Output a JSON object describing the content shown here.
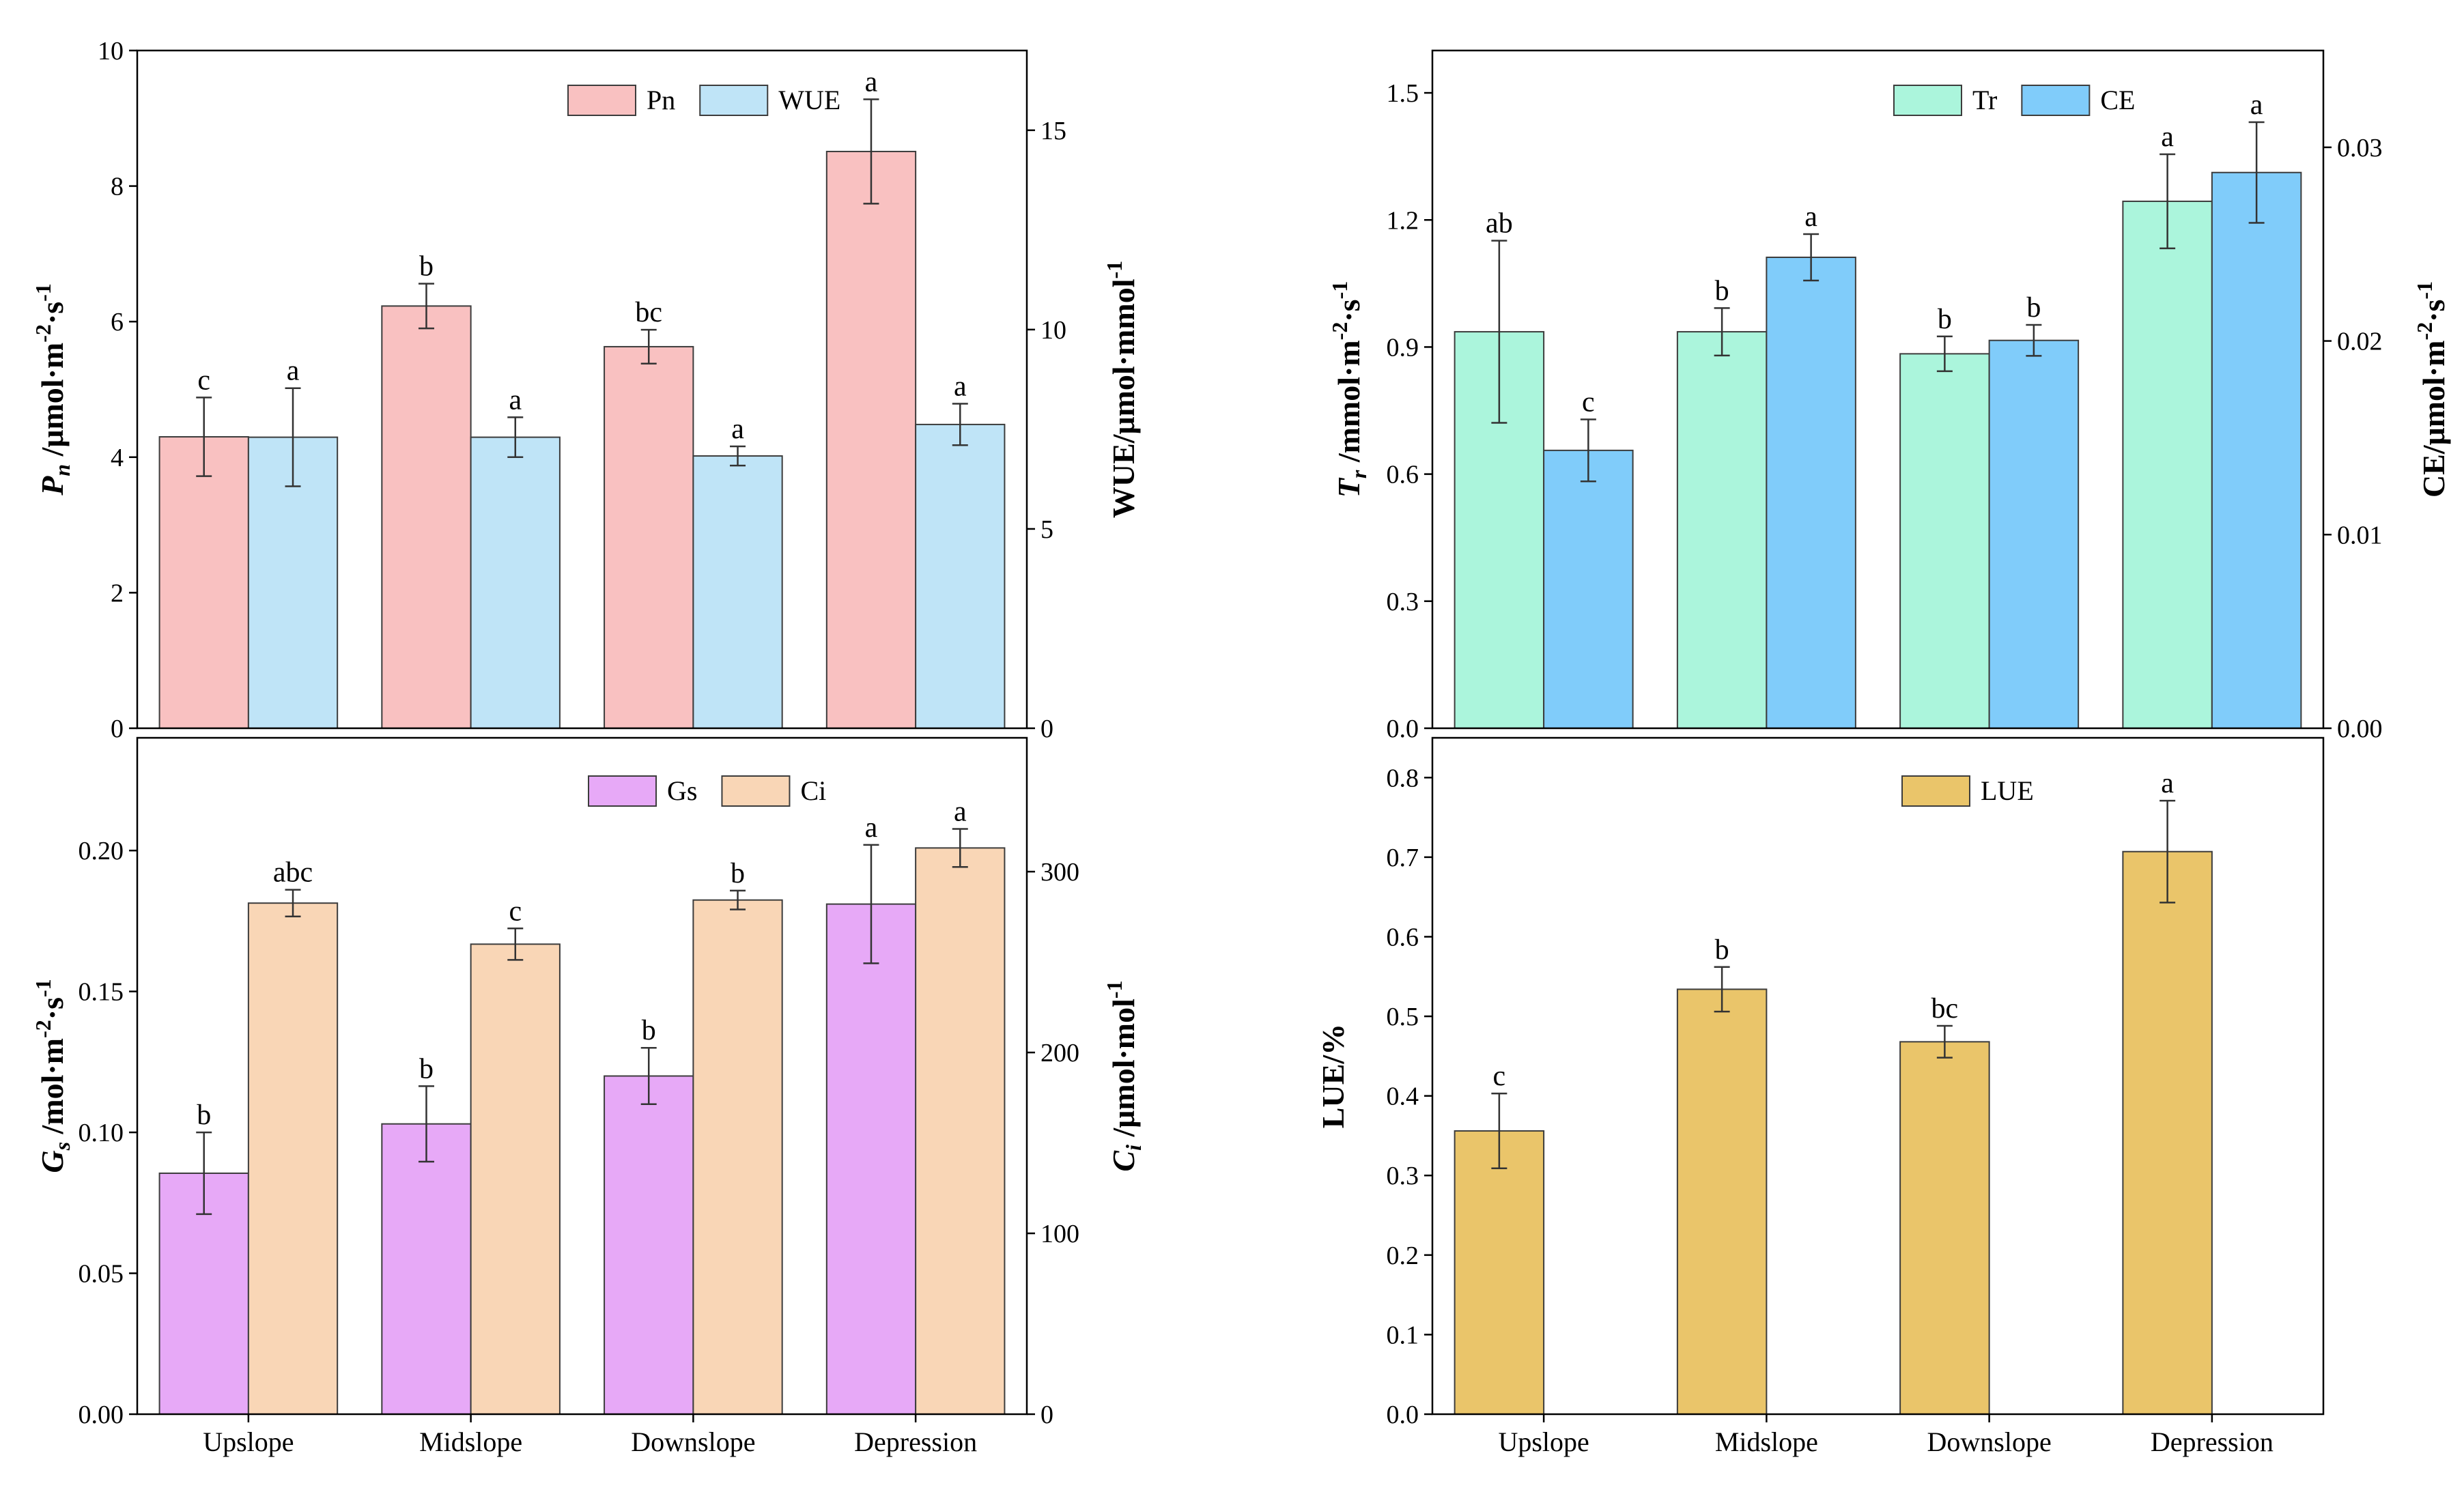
{
  "chart_data": [
    {
      "type": "bar",
      "categories": [
        "Upslope",
        "Midslope",
        "Downslope",
        "Depression"
      ],
      "panels": [
        {
          "y_axes": [
            {
              "label": [
                {
                  "t": "P",
                  "italic": true
                },
                {
                  "sub": "n",
                  "italic": true
                },
                {
                  "t": " /μmol·m"
                },
                {
                  "sup": "-2"
                },
                {
                  "t": "·s"
                },
                {
                  "sup": "-1"
                }
              ],
              "ylim": [
                0,
                10
              ],
              "ticks": [
                0,
                2,
                4,
                6,
                8,
                10
              ],
              "tick_labels": [
                "0",
                "2",
                "4",
                "6",
                "8",
                "10"
              ]
            },
            {
              "label": [
                {
                  "t": "WUE/μmol·mmol"
                },
                {
                  "sup": "-1"
                }
              ],
              "ylim": [
                0,
                17
              ],
              "ticks": [
                0,
                5,
                10,
                15
              ],
              "tick_labels": [
                "0",
                "5",
                "10",
                "15"
              ]
            }
          ],
          "series": [
            {
              "name": "Pn",
              "y_axis": 0,
              "color": "#F9C1C1",
              "values": [
                4.3,
                6.23,
                5.63,
                8.51
              ],
              "errors": [
                0.58,
                0.33,
                0.25,
                0.77
              ],
              "letters": [
                "c",
                "b",
                "bc",
                "a"
              ]
            },
            {
              "name": "WUE",
              "y_axis": 1,
              "color": "#BFE4F7",
              "values": [
                7.3,
                7.3,
                6.83,
                7.62
              ],
              "errors": [
                1.23,
                0.5,
                0.24,
                0.52
              ],
              "letters": [
                "a",
                "a",
                "a",
                "a"
              ]
            }
          ]
        },
        {
          "y_axes": [
            {
              "label": [
                {
                  "t": "G",
                  "italic": true
                },
                {
                  "sub": "s",
                  "italic": true
                },
                {
                  "t": " /mol·m"
                },
                {
                  "sup": "-2"
                },
                {
                  "t": "·s"
                },
                {
                  "sup": "-1"
                }
              ],
              "ylim": [
                0,
                0.24
              ],
              "ticks": [
                0,
                0.05,
                0.1,
                0.15,
                0.2
              ],
              "tick_labels": [
                "0.00",
                "0.05",
                "0.10",
                "0.15",
                "0.20"
              ]
            },
            {
              "label": [
                {
                  "t": "C",
                  "italic": true
                },
                {
                  "sub": "i",
                  "italic": true
                },
                {
                  "t": " /μmol·mol"
                },
                {
                  "sup": "-1"
                }
              ],
              "ylim": [
                0,
                374
              ],
              "ticks": [
                0,
                100,
                200,
                300
              ],
              "tick_labels": [
                "0",
                "100",
                "200",
                "300"
              ]
            }
          ],
          "series": [
            {
              "name": "Gs",
              "y_axis": 0,
              "color": "#E7A9F7",
              "values": [
                0.0855,
                0.103,
                0.12,
                0.181
              ],
              "errors": [
                0.0145,
                0.0134,
                0.01,
                0.021
              ],
              "letters": [
                "b",
                "b",
                "b",
                "a"
              ]
            },
            {
              "name": "Ci",
              "y_axis": 1,
              "color": "#F9D6B6",
              "values": [
                282.6,
                259.9,
                284.3,
                313.1
              ],
              "errors": [
                7.4,
                8.7,
                5.2,
                10.5
              ],
              "letters": [
                "abc",
                "c",
                "b",
                "a"
              ]
            }
          ]
        }
      ]
    },
    {
      "type": "bar",
      "categories": [
        "Upslope",
        "Midslope",
        "Downslope",
        "Depression"
      ],
      "panels": [
        {
          "y_axes": [
            {
              "label": [
                {
                  "t": "T",
                  "italic": true
                },
                {
                  "sub": "r",
                  "italic": true
                },
                {
                  "t": " /mmol·m"
                },
                {
                  "sup": "-2"
                },
                {
                  "t": "·s"
                },
                {
                  "sup": "-1"
                }
              ],
              "ylim": [
                0,
                1.6
              ],
              "ticks": [
                0,
                0.3,
                0.6,
                0.9,
                1.2,
                1.5
              ],
              "tick_labels": [
                "0.0",
                "0.3",
                "0.6",
                "0.9",
                "1.2",
                "1.5"
              ]
            },
            {
              "label": [
                {
                  "t": "CE/μmol·m"
                },
                {
                  "sup": "-2"
                },
                {
                  "t": "·s"
                },
                {
                  "sup": "-1"
                }
              ],
              "ylim": [
                0,
                0.035
              ],
              "ticks": [
                0,
                0.01,
                0.02,
                0.03
              ],
              "tick_labels": [
                "0.00",
                "0.01",
                "0.02",
                "0.03"
              ]
            }
          ],
          "series": [
            {
              "name": "Tr",
              "y_axis": 0,
              "color": "#ABF5DC",
              "values": [
                0.936,
                0.936,
                0.884,
                1.244
              ],
              "errors": [
                0.215,
                0.056,
                0.041,
                0.111
              ],
              "letters": [
                "ab",
                "b",
                "b",
                "a"
              ]
            },
            {
              "name": "CE",
              "y_axis": 1,
              "color": "#80CCFA",
              "values": [
                0.01435,
                0.02432,
                0.02003,
                0.0287
              ],
              "errors": [
                0.0016,
                0.0012,
                0.0008,
                0.0026
              ],
              "letters": [
                "c",
                "a",
                "b",
                "a"
              ]
            }
          ]
        },
        {
          "y_axes": [
            {
              "label": [
                {
                  "t": "LUE/%"
                }
              ],
              "ylim": [
                0,
                0.85
              ],
              "ticks": [
                0,
                0.1,
                0.2,
                0.3,
                0.4,
                0.5,
                0.6,
                0.7,
                0.8
              ],
              "tick_labels": [
                "0.0",
                "0.1",
                "0.2",
                "0.3",
                "0.4",
                "0.5",
                "0.6",
                "0.7",
                "0.8"
              ]
            }
          ],
          "series": [
            {
              "name": "LUE",
              "y_axis": 0,
              "color": "#EAC56A",
              "values": [
                0.356,
                0.534,
                0.468,
                0.707
              ],
              "errors": [
                0.047,
                0.028,
                0.02,
                0.064
              ],
              "letters": [
                "c",
                "b",
                "bc",
                "a"
              ]
            }
          ]
        }
      ]
    }
  ]
}
